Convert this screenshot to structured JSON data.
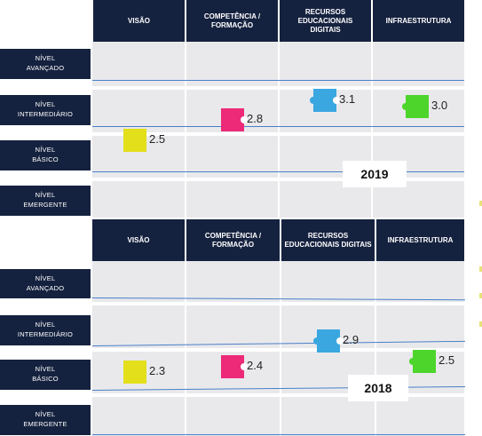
{
  "chart_data": [
    {
      "type": "scatter",
      "year_label": "2019",
      "categories": [
        "VISÃO",
        "COMPETÊNCIA / FORMAÇÃO",
        "RECURSOS EDUCACIONAIS DIGITAIS",
        "INFRAESTRUTURA"
      ],
      "levels": [
        "NÍVEL\nAVANÇADO",
        "NÍVEL\nINTERMEDIÁRIO",
        "NÍVEL\nBÁSICO",
        "NÍVEL\nEMERGENTE"
      ],
      "values": [
        2.5,
        2.8,
        3.1,
        3.0
      ],
      "value_labels": [
        "2.5",
        "2.8",
        "3.1",
        "3.0"
      ],
      "colors": [
        "#e3df1a",
        "#ec2a78",
        "#3aa7e0",
        "#4dd52c"
      ]
    },
    {
      "type": "scatter",
      "year_label": "2018",
      "categories": [
        "VISÃO",
        "COMPETÊNCIA / FORMAÇÃO",
        "RECURSOS EDUCACIONAIS DIGITAIS",
        "INFRAESTRUTURA"
      ],
      "levels": [
        "NÍVEL\nAVANÇADO",
        "NÍVEL\nINTERMEDIÁRIO",
        "NÍVEL\nBÁSICO",
        "NÍVEL\nEMERGENTE"
      ],
      "values": [
        2.3,
        2.4,
        2.9,
        2.5
      ],
      "value_labels": [
        "2.3",
        "2.4",
        "2.9",
        "2.5"
      ],
      "colors": [
        "#e3df1a",
        "#ec2a78",
        "#3aa7e0",
        "#4dd52c"
      ]
    }
  ]
}
